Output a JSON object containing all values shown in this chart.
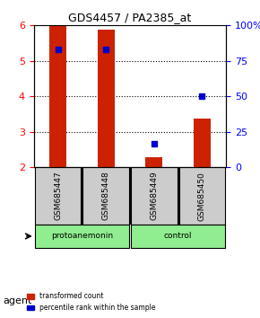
{
  "title": "GDS4457 / PA2385_at",
  "samples": [
    "GSM685447",
    "GSM685448",
    "GSM685449",
    "GSM685450"
  ],
  "red_values": [
    5.98,
    5.88,
    2.28,
    3.38
  ],
  "blue_values": [
    0.83,
    0.83,
    0.17,
    0.5
  ],
  "ylim_left": [
    2,
    6
  ],
  "ylim_right": [
    0,
    1
  ],
  "yticks_left": [
    2,
    3,
    4,
    5,
    6
  ],
  "yticks_right": [
    0,
    0.25,
    0.5,
    0.75,
    1.0
  ],
  "ytick_labels_right": [
    "0",
    "25",
    "50",
    "75",
    "100%"
  ],
  "groups": [
    {
      "label": "protoanemonin",
      "samples": [
        0,
        1
      ],
      "color": "#90EE90"
    },
    {
      "label": "control",
      "samples": [
        2,
        3
      ],
      "color": "#90EE90"
    }
  ],
  "bar_width": 0.35,
  "red_color": "#CC2200",
  "blue_color": "#0000CC",
  "sample_box_color": "#CCCCCC",
  "agent_label": "agent",
  "legend_red": "transformed count",
  "legend_blue": "percentile rank within the sample",
  "bar_bottom": 2.0
}
